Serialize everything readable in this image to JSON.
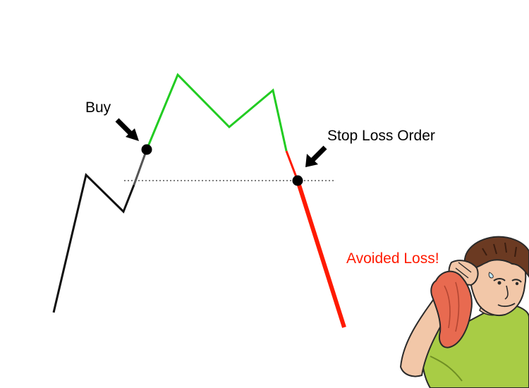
{
  "annotations": {
    "buy": "Buy",
    "stop_loss": "Stop Loss Order",
    "avoided": "Avoided Loss!"
  },
  "colors": {
    "pre_buy_line": "#111111",
    "buy_transition": "#555555",
    "profit_line": "#22cc22",
    "loss_line": "#ff1a00",
    "avoided_text": "#ff1a00",
    "marker": "#000000"
  },
  "illustration": {
    "icon": "man-wiping-sweat-icon"
  }
}
